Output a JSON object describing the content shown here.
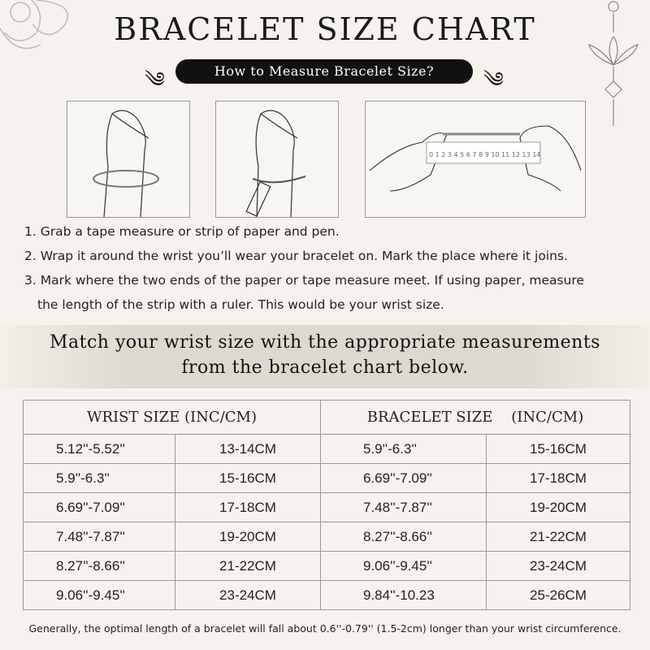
{
  "title": "BRACELET SIZE CHART",
  "subtitle": "How to Measure Bracelet Size?",
  "ruler_numbers": [
    "0",
    "1",
    "2",
    "3",
    "4",
    "5",
    "6",
    "7",
    "8",
    "9",
    "10",
    "11",
    "12",
    "13",
    "14"
  ],
  "steps": [
    "1. Grab a tape measure or strip of paper and pen.",
    "2. Wrap it around the wrist you’ll wear your bracelet on. Mark the place where it joins.",
    "3. Mark where the two ends of the paper or tape measure meet. If using paper, measure",
    "the length of the strip with a ruler. This would be your wrist size."
  ],
  "band": [
    "Match your wrist size with the appropriate measurements",
    "from the bracelet chart below."
  ],
  "table": {
    "headers": [
      "WRIST SIZE (INC/CM)",
      "BRACELET SIZE    (INC/CM)"
    ],
    "rows": [
      [
        "5.12''-5.52''",
        "13-14CM",
        "5.9''-6.3''",
        "15-16CM"
      ],
      [
        "5.9''-6.3''",
        "15-16CM",
        "6.69''-7.09''",
        "17-18CM"
      ],
      [
        "6.69''-7.09''",
        "17-18CM",
        "7.48''-7.87''",
        "19-20CM"
      ],
      [
        "7.48''-7.87''",
        "19-20CM",
        "8.27''-8.66''",
        "21-22CM"
      ],
      [
        "8.27''-8.66''",
        "21-22CM",
        "9.06''-9.45''",
        "23-24CM"
      ],
      [
        "9.06''-9.45''",
        "23-24CM",
        "9.84''-10.23",
        "25-26CM"
      ]
    ]
  },
  "footer": "Generally, the optimal length of a bracelet will fall about 0.6''-0.79'' (1.5-2cm) longer than your wrist circumference."
}
